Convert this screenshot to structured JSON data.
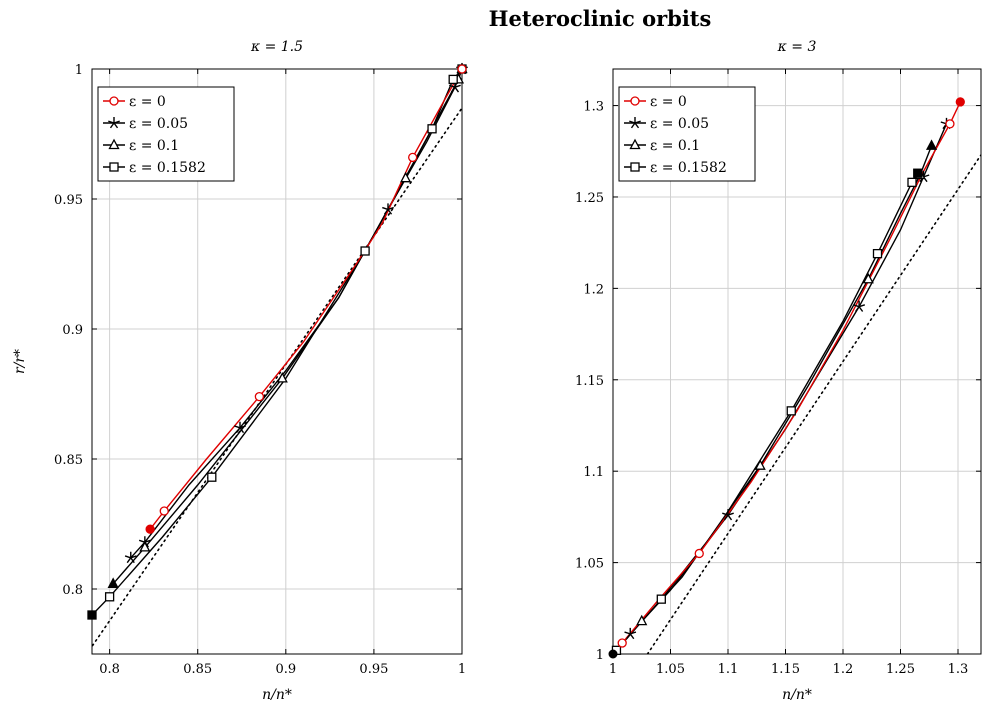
{
  "figure_title": "Heteroclinic orbits",
  "chart_data": [
    {
      "type": "line",
      "title": "κ = 1.5",
      "xlabel": "n/n*",
      "ylabel": "r/r*",
      "xlim": [
        0.79,
        1.0
      ],
      "ylim": [
        0.775,
        1.0
      ],
      "xticks": [
        0.8,
        0.85,
        0.9,
        0.95,
        1
      ],
      "xtick_labels": [
        "0.8",
        "0.85",
        "0.9",
        "0.95",
        "1"
      ],
      "yticks": [
        0.8,
        0.85,
        0.9,
        0.95,
        1
      ],
      "ytick_labels": [
        "0.8",
        "0.85",
        "0.9",
        "0.95",
        "1"
      ],
      "grid": true,
      "legend_position": "top-left",
      "series": [
        {
          "name": "ε = 0",
          "color": "#e00000",
          "marker": "circle",
          "x": [
            0.823,
            0.831,
            0.855,
            0.885,
            0.91,
            0.94,
            0.955,
            0.972,
            0.99,
            1.0
          ],
          "y": [
            0.823,
            0.83,
            0.85,
            0.874,
            0.895,
            0.925,
            0.941,
            0.966,
            0.988,
            1.0
          ],
          "marker_x": [
            0.831,
            0.885,
            0.972,
            1.0
          ],
          "marker_y": [
            0.83,
            0.874,
            0.966,
            1.0
          ],
          "end_x": 0.823,
          "end_y": 0.823
        },
        {
          "name": "ε = 0.05",
          "color": "#000000",
          "marker": "star",
          "x": [
            0.812,
            0.82,
            0.845,
            0.874,
            0.9,
            0.93,
            0.958,
            0.98,
            0.996,
            1.0
          ],
          "y": [
            0.812,
            0.818,
            0.84,
            0.862,
            0.884,
            0.912,
            0.946,
            0.972,
            0.993,
            1.0
          ],
          "marker_x": [
            0.812,
            0.82,
            0.874,
            0.958,
            0.996,
            1.0
          ],
          "marker_y": [
            0.812,
            0.818,
            0.862,
            0.946,
            0.993,
            1.0
          ]
        },
        {
          "name": "ε = 0.1",
          "color": "#000000",
          "marker": "triangle",
          "x": [
            0.802,
            0.82,
            0.85,
            0.898,
            0.93,
            0.968,
            0.99,
            0.998,
            1.0
          ],
          "y": [
            0.802,
            0.816,
            0.84,
            0.881,
            0.912,
            0.958,
            0.986,
            0.996,
            1.0
          ],
          "marker_x": [
            0.82,
            0.898,
            0.968,
            0.998,
            1.0
          ],
          "marker_y": [
            0.816,
            0.881,
            0.958,
            0.996,
            1.0
          ],
          "end_x": 0.802,
          "end_y": 0.802
        },
        {
          "name": "ε = 0.1582",
          "color": "#000000",
          "marker": "square",
          "x": [
            0.79,
            0.8,
            0.83,
            0.858,
            0.9,
            0.945,
            0.983,
            0.995,
            1.0
          ],
          "y": [
            0.79,
            0.797,
            0.82,
            0.843,
            0.881,
            0.93,
            0.977,
            0.996,
            1.0
          ],
          "marker_x": [
            0.8,
            0.858,
            0.945,
            0.983,
            0.995,
            1.0
          ],
          "marker_y": [
            0.797,
            0.843,
            0.93,
            0.977,
            0.996,
            1.0
          ],
          "end_x": 0.79,
          "end_y": 0.79
        }
      ],
      "dotted_line": {
        "x": [
          0.785,
          1.0
        ],
        "y": [
          0.773,
          0.985
        ]
      }
    },
    {
      "type": "line",
      "title": "κ = 3",
      "xlabel": "n/n*",
      "ylabel": "",
      "xlim": [
        1.0,
        1.32
      ],
      "ylim": [
        1.0,
        1.32
      ],
      "xticks": [
        1,
        1.05,
        1.1,
        1.15,
        1.2,
        1.25,
        1.3
      ],
      "xtick_labels": [
        "1",
        "1.05",
        "1.1",
        "1.15",
        "1.2",
        "1.25",
        "1.3"
      ],
      "yticks": [
        1,
        1.05,
        1.1,
        1.15,
        1.2,
        1.25,
        1.3
      ],
      "ytick_labels": [
        "1",
        "1.05",
        "1.1",
        "1.15",
        "1.2",
        "1.25",
        "1.3"
      ],
      "grid": true,
      "legend_position": "top-left",
      "series": [
        {
          "name": "ε = 0",
          "color": "#e00000",
          "marker": "circle",
          "x": [
            1.0,
            1.008,
            1.04,
            1.075,
            1.12,
            1.16,
            1.2,
            1.24,
            1.27,
            1.293,
            1.302
          ],
          "y": [
            1.0,
            1.006,
            1.03,
            1.055,
            1.094,
            1.133,
            1.177,
            1.226,
            1.264,
            1.29,
            1.302
          ],
          "marker_x": [
            1.008,
            1.075,
            1.293
          ],
          "marker_y": [
            1.006,
            1.055,
            1.29
          ],
          "end_x": 1.302,
          "end_y": 1.302
        },
        {
          "name": "ε = 0.05",
          "color": "#000000",
          "marker": "star",
          "x": [
            1.0,
            1.015,
            1.05,
            1.1,
            1.15,
            1.214,
            1.25,
            1.27,
            1.29
          ],
          "y": [
            1.0,
            1.011,
            1.035,
            1.076,
            1.123,
            1.19,
            1.232,
            1.261,
            1.29
          ],
          "marker_x": [
            1.015,
            1.1,
            1.214,
            1.27,
            1.29
          ],
          "marker_y": [
            1.011,
            1.076,
            1.19,
            1.261,
            1.29
          ]
        },
        {
          "name": "ε = 0.1",
          "color": "#000000",
          "marker": "triangle",
          "x": [
            1.0,
            1.025,
            1.06,
            1.128,
            1.17,
            1.222,
            1.25,
            1.267,
            1.277
          ],
          "y": [
            1.0,
            1.018,
            1.042,
            1.103,
            1.147,
            1.205,
            1.241,
            1.262,
            1.278
          ],
          "marker_x": [
            1.025,
            1.128,
            1.222,
            1.267
          ],
          "marker_y": [
            1.018,
            1.103,
            1.205,
            1.262
          ],
          "end_x": 1.277,
          "end_y": 1.278
        },
        {
          "name": "ε = 0.1582",
          "color": "#000000",
          "marker": "square",
          "x": [
            1.0,
            1.003,
            1.042,
            1.09,
            1.155,
            1.2,
            1.23,
            1.26,
            1.265
          ],
          "y": [
            1.0,
            1.002,
            1.03,
            1.068,
            1.133,
            1.182,
            1.219,
            1.258,
            1.263
          ],
          "marker_x": [
            1.003,
            1.042,
            1.155,
            1.23,
            1.26
          ],
          "marker_y": [
            1.002,
            1.03,
            1.133,
            1.219,
            1.258
          ],
          "end_x": 1.265,
          "end_y": 1.263
        },
        {
          "name": "",
          "color": "#000000",
          "marker": "none",
          "x": [
            1.0
          ],
          "y": [
            1.0
          ],
          "marker_x": [],
          "marker_y": [],
          "end_x": 1.0,
          "end_y": 1.0
        }
      ],
      "dotted_line": {
        "x": [
          1.03,
          1.32
        ],
        "y": [
          1.0,
          1.273
        ]
      }
    }
  ]
}
